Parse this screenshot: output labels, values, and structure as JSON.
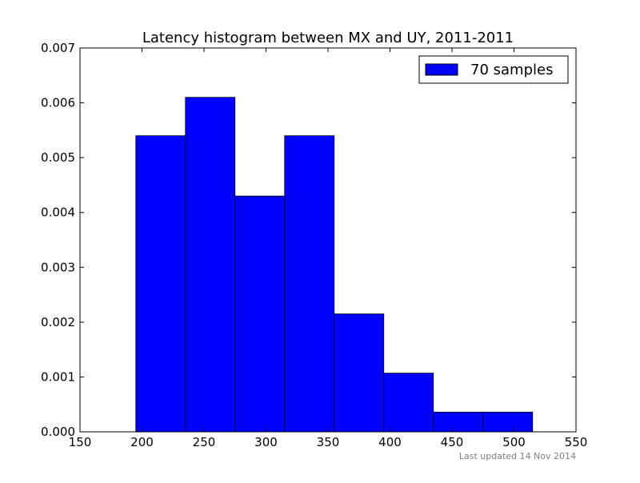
{
  "chart_data": {
    "type": "bar",
    "title": "Latency histogram between MX and UY, 2011-2011",
    "xlabel": "",
    "ylabel": "",
    "xlim": [
      150,
      550
    ],
    "ylim": [
      0,
      0.007
    ],
    "x_ticks": [
      150,
      200,
      250,
      300,
      350,
      400,
      450,
      500,
      550
    ],
    "x_tick_labels": [
      "150",
      "200",
      "250",
      "300",
      "350",
      "400",
      "450",
      "500",
      "550"
    ],
    "y_ticks": [
      0,
      0.001,
      0.002,
      0.003,
      0.004,
      0.005,
      0.006,
      0.007
    ],
    "y_tick_labels": [
      "0.000",
      "0.001",
      "0.002",
      "0.003",
      "0.004",
      "0.005",
      "0.006",
      "0.007"
    ],
    "grid": false,
    "legend_position": "top-right",
    "series": [
      {
        "name": "70 samples",
        "color": "#0000ff",
        "bins": [
          {
            "x0": 195,
            "x1": 235,
            "value": 0.0054
          },
          {
            "x0": 235,
            "x1": 275,
            "value": 0.0061
          },
          {
            "x0": 275,
            "x1": 315,
            "value": 0.0043
          },
          {
            "x0": 315,
            "x1": 355,
            "value": 0.0054
          },
          {
            "x0": 355,
            "x1": 395,
            "value": 0.00215
          },
          {
            "x0": 395,
            "x1": 435,
            "value": 0.00107
          },
          {
            "x0": 435,
            "x1": 475,
            "value": 0.00036
          },
          {
            "x0": 475,
            "x1": 515,
            "value": 0.00036
          }
        ]
      }
    ],
    "footnote": "Last updated 14 Nov 2014"
  }
}
